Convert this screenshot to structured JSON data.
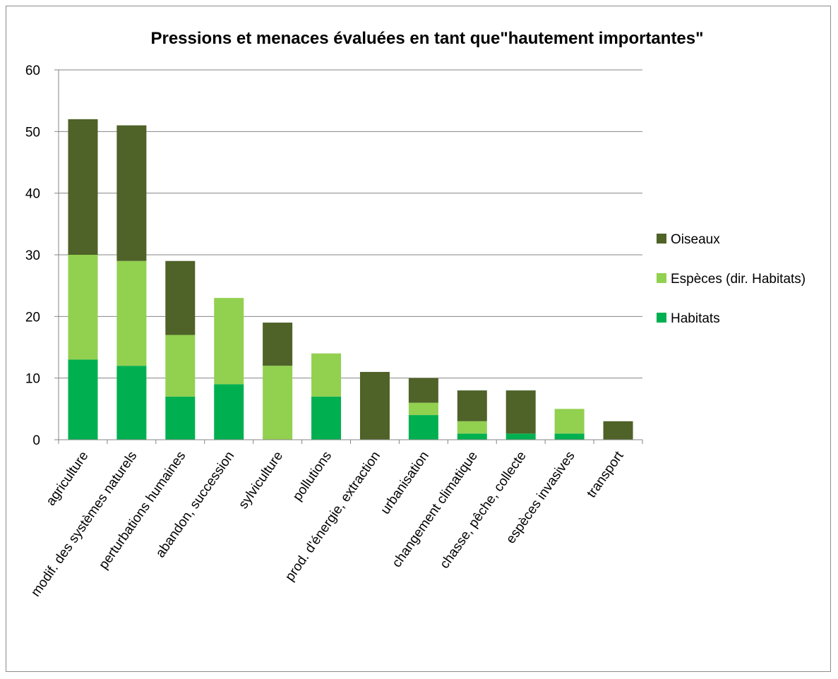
{
  "chart_data": {
    "type": "bar",
    "stacked": true,
    "title": "Pressions et menaces évaluées en tant que\"hautement importantes\"",
    "xlabel": "",
    "ylabel": "",
    "ylim": [
      0,
      60
    ],
    "yticks": [
      0,
      10,
      20,
      30,
      40,
      50,
      60
    ],
    "grid": true,
    "legend_position": "right",
    "categories": [
      "agriculture",
      "modif. des systèmes naturels",
      "perturbations humaines",
      "abandon, succession",
      "sylviculture",
      "pollutions",
      "prod. d'énergie, extraction",
      "urbanisation",
      "changement climatique",
      "chasse, pêche, collecte",
      "espèces invasives",
      "transport"
    ],
    "series": [
      {
        "name": "Habitats",
        "color": "#00b050",
        "values": [
          13,
          12,
          7,
          9,
          0,
          7,
          0,
          4,
          1,
          1,
          1,
          0
        ]
      },
      {
        "name": "Espèces (dir. Habitats)",
        "color": "#92d050",
        "values": [
          17,
          17,
          10,
          14,
          12,
          7,
          0,
          2,
          2,
          0,
          4,
          0
        ]
      },
      {
        "name": "Oiseaux",
        "color": "#4f6228",
        "values": [
          22,
          22,
          12,
          0,
          7,
          0,
          11,
          4,
          5,
          7,
          0,
          3
        ]
      }
    ],
    "legend_order": [
      "Oiseaux",
      "Espèces (dir. Habitats)",
      "Habitats"
    ]
  }
}
